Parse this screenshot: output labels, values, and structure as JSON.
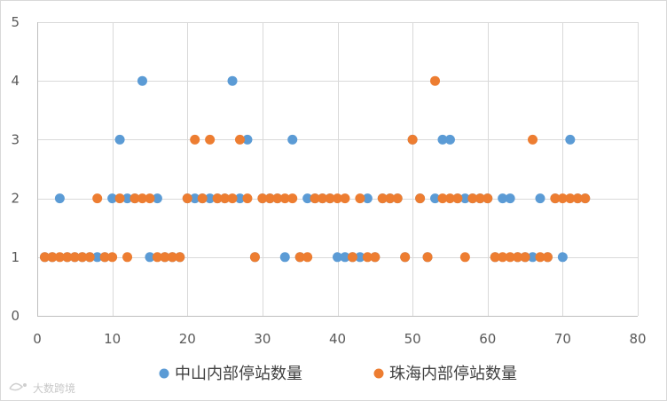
{
  "chart_data": {
    "type": "scatter",
    "title": "",
    "xlabel": "",
    "ylabel": "",
    "xlim": [
      0,
      80
    ],
    "ylim": [
      0,
      5
    ],
    "xticks": [
      0,
      10,
      20,
      30,
      40,
      50,
      60,
      70,
      80
    ],
    "yticks": [
      0,
      1,
      2,
      3,
      4,
      5
    ],
    "grid": true,
    "legend_position": "bottom",
    "series": [
      {
        "name": "中山内部停站数量",
        "color": "#5b9bd5",
        "points": [
          [
            1,
            1
          ],
          [
            2,
            1
          ],
          [
            3,
            2
          ],
          [
            4,
            1
          ],
          [
            5,
            1
          ],
          [
            6,
            1
          ],
          [
            7,
            1
          ],
          [
            8,
            1
          ],
          [
            9,
            1
          ],
          [
            10,
            2
          ],
          [
            11,
            3
          ],
          [
            12,
            2
          ],
          [
            13,
            2
          ],
          [
            14,
            4
          ],
          [
            15,
            1
          ],
          [
            16,
            2
          ],
          [
            17,
            1
          ],
          [
            18,
            1
          ],
          [
            19,
            1
          ],
          [
            20,
            2
          ],
          [
            21,
            2
          ],
          [
            22,
            2
          ],
          [
            23,
            2
          ],
          [
            24,
            2
          ],
          [
            25,
            2
          ],
          [
            26,
            4
          ],
          [
            27,
            2
          ],
          [
            28,
            3
          ],
          [
            29,
            1
          ],
          [
            30,
            2
          ],
          [
            31,
            2
          ],
          [
            32,
            2
          ],
          [
            33,
            1
          ],
          [
            34,
            3
          ],
          [
            35,
            1
          ],
          [
            36,
            2
          ],
          [
            37,
            2
          ],
          [
            38,
            2
          ],
          [
            39,
            2
          ],
          [
            40,
            1
          ],
          [
            41,
            1
          ],
          [
            42,
            1
          ],
          [
            43,
            1
          ],
          [
            44,
            2
          ],
          [
            45,
            1
          ],
          [
            46,
            2
          ],
          [
            47,
            2
          ],
          [
            48,
            2
          ],
          [
            49,
            1
          ],
          [
            50,
            3
          ],
          [
            51,
            2
          ],
          [
            52,
            1
          ],
          [
            53,
            2
          ],
          [
            54,
            3
          ],
          [
            55,
            3
          ],
          [
            56,
            2
          ],
          [
            57,
            2
          ],
          [
            58,
            2
          ],
          [
            59,
            2
          ],
          [
            60,
            2
          ],
          [
            61,
            1
          ],
          [
            62,
            2
          ],
          [
            63,
            2
          ],
          [
            64,
            1
          ],
          [
            65,
            1
          ],
          [
            66,
            1
          ],
          [
            67,
            2
          ],
          [
            68,
            1
          ],
          [
            69,
            2
          ],
          [
            70,
            1
          ],
          [
            71,
            3
          ],
          [
            72,
            2
          ],
          [
            73,
            2
          ]
        ]
      },
      {
        "name": "珠海内部停站数量",
        "color": "#ed7d31",
        "points": [
          [
            1,
            1
          ],
          [
            2,
            1
          ],
          [
            3,
            1
          ],
          [
            4,
            1
          ],
          [
            5,
            1
          ],
          [
            6,
            1
          ],
          [
            7,
            1
          ],
          [
            8,
            2
          ],
          [
            9,
            1
          ],
          [
            10,
            1
          ],
          [
            11,
            2
          ],
          [
            12,
            1
          ],
          [
            13,
            2
          ],
          [
            14,
            2
          ],
          [
            15,
            2
          ],
          [
            16,
            1
          ],
          [
            17,
            1
          ],
          [
            18,
            1
          ],
          [
            19,
            1
          ],
          [
            20,
            2
          ],
          [
            21,
            3
          ],
          [
            22,
            2
          ],
          [
            23,
            3
          ],
          [
            24,
            2
          ],
          [
            25,
            2
          ],
          [
            26,
            2
          ],
          [
            27,
            3
          ],
          [
            28,
            2
          ],
          [
            29,
            1
          ],
          [
            30,
            2
          ],
          [
            31,
            2
          ],
          [
            32,
            2
          ],
          [
            33,
            2
          ],
          [
            34,
            2
          ],
          [
            35,
            1
          ],
          [
            36,
            1
          ],
          [
            37,
            2
          ],
          [
            38,
            2
          ],
          [
            39,
            2
          ],
          [
            40,
            2
          ],
          [
            41,
            2
          ],
          [
            42,
            1
          ],
          [
            43,
            2
          ],
          [
            44,
            1
          ],
          [
            45,
            1
          ],
          [
            46,
            2
          ],
          [
            47,
            2
          ],
          [
            48,
            2
          ],
          [
            49,
            1
          ],
          [
            50,
            3
          ],
          [
            51,
            2
          ],
          [
            52,
            1
          ],
          [
            53,
            4
          ],
          [
            54,
            2
          ],
          [
            55,
            2
          ],
          [
            56,
            2
          ],
          [
            57,
            1
          ],
          [
            58,
            2
          ],
          [
            59,
            2
          ],
          [
            60,
            2
          ],
          [
            61,
            1
          ],
          [
            62,
            1
          ],
          [
            63,
            1
          ],
          [
            64,
            1
          ],
          [
            65,
            1
          ],
          [
            66,
            3
          ],
          [
            67,
            1
          ],
          [
            68,
            1
          ],
          [
            69,
            2
          ],
          [
            70,
            2
          ],
          [
            71,
            2
          ],
          [
            72,
            2
          ],
          [
            73,
            2
          ]
        ]
      }
    ]
  },
  "watermark": {
    "text": "大数跨境",
    "icon": "brand-logo-icon"
  }
}
